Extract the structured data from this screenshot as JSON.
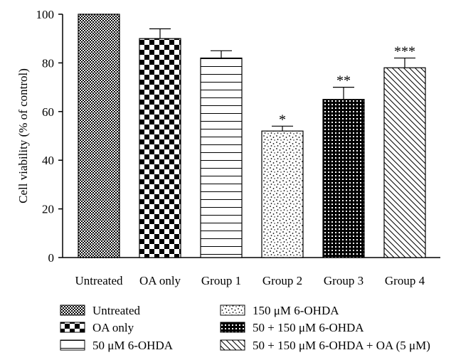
{
  "chart_data": {
    "type": "bar",
    "categories": [
      "Untreated",
      "OA only",
      "Group 1",
      "Group 2",
      "Group 3",
      "Group 4"
    ],
    "values": [
      100,
      90,
      82,
      52,
      65,
      78
    ],
    "errors": [
      0,
      4,
      3,
      2,
      5,
      4
    ],
    "significance": [
      "",
      "",
      "",
      "*",
      "**",
      "***"
    ],
    "ylabel": "Cell viability (% of control)",
    "xlabel": "",
    "ylim": [
      0,
      100
    ],
    "yticks": [
      "0",
      "20",
      "40",
      "60",
      "80",
      "100"
    ],
    "grid": false,
    "legend_position": "bottom",
    "legend": [
      {
        "label": "Untreated",
        "pattern": "fine-checker"
      },
      {
        "label": "OA only",
        "pattern": "large-checker"
      },
      {
        "label": "50 μM 6-OHDA",
        "pattern": "horizontal-lines"
      },
      {
        "label": "150 μM 6-OHDA",
        "pattern": "dots"
      },
      {
        "label": "50 + 150 μM 6-OHDA",
        "pattern": "dense-grid"
      },
      {
        "label": "50 + 150 μM 6-OHDA + OA (5 μM)",
        "pattern": "diagonal-lines"
      }
    ],
    "colors": {
      "ink": "#000000",
      "background": "#ffffff"
    }
  }
}
